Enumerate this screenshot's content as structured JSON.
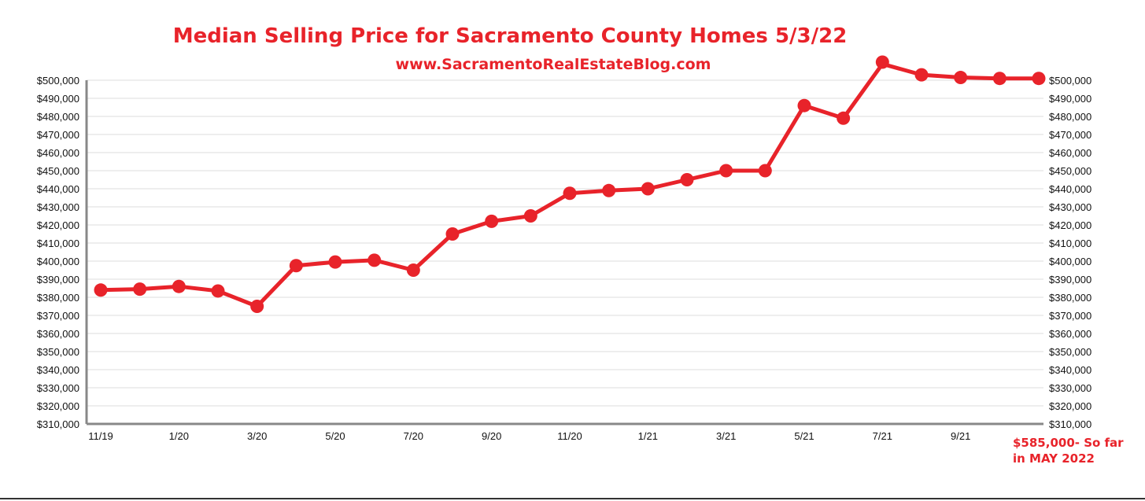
{
  "chart_data": {
    "type": "line",
    "title": "Median Selling Price for Sacramento County Homes 5/3/22",
    "subtitle": "www.SacramentoRealEstateBlog.com",
    "x": [
      "11/19",
      "12/19",
      "1/20",
      "2/20",
      "3/20",
      "4/20",
      "5/20",
      "6/20",
      "7/20",
      "8/20",
      "9/20",
      "10/20",
      "11/20",
      "12/20",
      "1/21",
      "2/21",
      "3/21",
      "4/21",
      "5/21",
      "6/21",
      "7/21",
      "8/21",
      "9/21",
      "10/21",
      "11/21"
    ],
    "x_tick_labels": [
      "11/19",
      "1/20",
      "3/20",
      "5/20",
      "7/20",
      "9/20",
      "11/20",
      "1/21",
      "3/21",
      "5/21",
      "7/21",
      "9/21"
    ],
    "series": [
      {
        "values": [
          384000,
          384500,
          386000,
          383500,
          375000,
          397500,
          399500,
          400500,
          395000,
          415000,
          422000,
          425000,
          437500,
          439000,
          440000,
          445000,
          450000,
          450000,
          486000,
          479000,
          510000,
          503000,
          501500,
          501000,
          501000
        ],
        "color": "#e8232a"
      }
    ],
    "y_tick_labels": [
      "$500,000",
      "$490,000",
      "$480,000",
      "$470,000",
      "$460,000",
      "$450,000",
      "$440,000",
      "$430,000",
      "$420,000",
      "$410,000",
      "$400,000",
      "$390,000",
      "$380,000",
      "$370,000",
      "$360,000",
      "$350,000",
      "$340,000",
      "$330,000",
      "$320,000",
      "$310,000"
    ],
    "ylim": [
      310000,
      500000
    ],
    "grid": true,
    "annotation_line1": "$585,000- So far",
    "annotation_line2": "in  MAY 2022",
    "line_color": "#e8232a"
  }
}
